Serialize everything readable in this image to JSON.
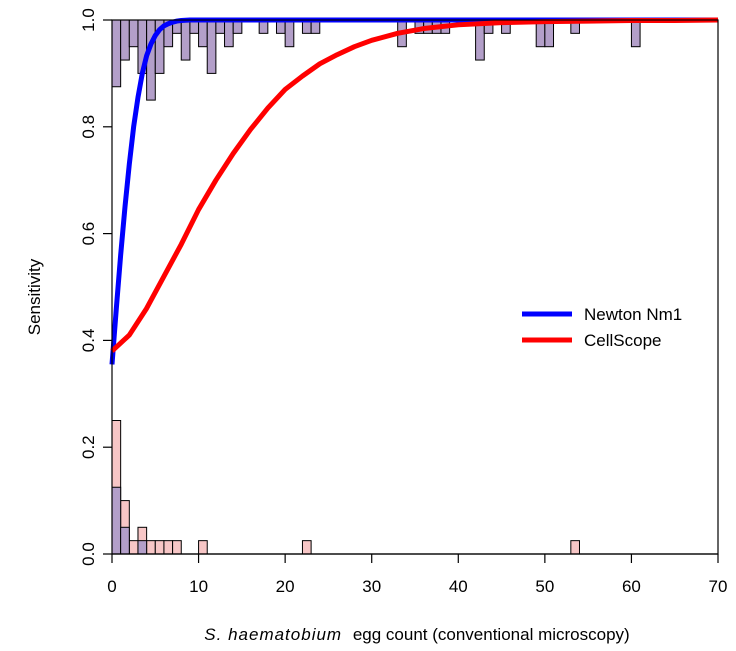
{
  "chart_data": {
    "type": "line",
    "xlabel_italic": "S. haematobium",
    "xlabel_rest": "egg count (conventional microscopy)",
    "ylabel": "Sensitivity",
    "xlim": [
      0,
      70
    ],
    "ylim": [
      0,
      1
    ],
    "x_ticks": [
      0,
      10,
      20,
      30,
      40,
      50,
      60,
      70
    ],
    "y_ticks": [
      0.0,
      0.2,
      0.4,
      0.6,
      0.8,
      1.0
    ],
    "x_tick_labels": [
      "0",
      "10",
      "20",
      "30",
      "40",
      "50",
      "60",
      "70"
    ],
    "y_tick_labels": [
      "0.0",
      "0.2",
      "0.4",
      "0.6",
      "0.8",
      "1.0"
    ],
    "grid": false,
    "legend_position": "right",
    "series": [
      {
        "name": "Newton Nm1",
        "color": "#0000ff",
        "x": [
          0,
          0.5,
          1,
          1.5,
          2,
          2.5,
          3,
          3.5,
          4,
          4.5,
          5,
          5.5,
          6,
          6.5,
          7,
          7.5,
          8,
          9,
          10,
          12,
          15,
          20,
          30,
          40,
          50,
          60,
          70
        ],
        "y": [
          0.355,
          0.46,
          0.56,
          0.65,
          0.73,
          0.8,
          0.855,
          0.9,
          0.933,
          0.955,
          0.971,
          0.982,
          0.989,
          0.993,
          0.996,
          0.998,
          0.999,
          1.0,
          1.0,
          1.0,
          1.0,
          1.0,
          1.0,
          1.0,
          1.0,
          1.0,
          1.0
        ]
      },
      {
        "name": "CellScope",
        "color": "#ff0000",
        "x": [
          0,
          2,
          4,
          6,
          8,
          10,
          12,
          14,
          16,
          18,
          20,
          22,
          24,
          26,
          28,
          30,
          33,
          36,
          40,
          45,
          50,
          55,
          60,
          65,
          70
        ],
        "y": [
          0.38,
          0.41,
          0.46,
          0.52,
          0.58,
          0.645,
          0.7,
          0.75,
          0.795,
          0.835,
          0.87,
          0.895,
          0.918,
          0.935,
          0.95,
          0.962,
          0.975,
          0.984,
          0.991,
          0.995,
          0.997,
          0.998,
          0.999,
          0.999,
          1.0
        ]
      }
    ],
    "histograms": {
      "bin_width": 1,
      "top_hanging_purple": [
        {
          "x": 0,
          "h": 0.125
        },
        {
          "x": 1,
          "h": 0.075
        },
        {
          "x": 2,
          "h": 0.05
        },
        {
          "x": 3,
          "h": 0.1
        },
        {
          "x": 4,
          "h": 0.15
        },
        {
          "x": 5,
          "h": 0.1
        },
        {
          "x": 6,
          "h": 0.05
        },
        {
          "x": 7,
          "h": 0.025
        },
        {
          "x": 8,
          "h": 0.075
        },
        {
          "x": 9,
          "h": 0.025
        },
        {
          "x": 10,
          "h": 0.05
        },
        {
          "x": 11,
          "h": 0.1
        },
        {
          "x": 12,
          "h": 0.025
        },
        {
          "x": 13,
          "h": 0.05
        },
        {
          "x": 14,
          "h": 0.025
        },
        {
          "x": 17,
          "h": 0.025
        },
        {
          "x": 19,
          "h": 0.025
        },
        {
          "x": 20,
          "h": 0.05
        },
        {
          "x": 22,
          "h": 0.025
        },
        {
          "x": 23,
          "h": 0.025
        },
        {
          "x": 33,
          "h": 0.05
        },
        {
          "x": 35,
          "h": 0.025
        },
        {
          "x": 36,
          "h": 0.025
        },
        {
          "x": 37,
          "h": 0.025
        },
        {
          "x": 38,
          "h": 0.025
        },
        {
          "x": 42,
          "h": 0.075
        },
        {
          "x": 43,
          "h": 0.025
        },
        {
          "x": 45,
          "h": 0.025
        },
        {
          "x": 49,
          "h": 0.05
        },
        {
          "x": 50,
          "h": 0.05
        },
        {
          "x": 53,
          "h": 0.025
        },
        {
          "x": 60,
          "h": 0.05
        }
      ],
      "top_hanging_blue": [
        {
          "x": 0,
          "h": 0.05
        },
        {
          "x": 1,
          "h": 0.05
        },
        {
          "x": 2,
          "h": 0.025
        },
        {
          "x": 4,
          "h": 0.05
        }
      ],
      "bottom_pink": [
        {
          "x": 0,
          "h": 0.25
        },
        {
          "x": 1,
          "h": 0.1
        },
        {
          "x": 2,
          "h": 0.025
        },
        {
          "x": 3,
          "h": 0.05
        },
        {
          "x": 4,
          "h": 0.025
        },
        {
          "x": 5,
          "h": 0.025
        },
        {
          "x": 6,
          "h": 0.025
        },
        {
          "x": 7,
          "h": 0.025
        },
        {
          "x": 10,
          "h": 0.025
        },
        {
          "x": 22,
          "h": 0.025
        },
        {
          "x": 53,
          "h": 0.025
        }
      ],
      "bottom_purple": [
        {
          "x": 0,
          "h": 0.125
        },
        {
          "x": 1,
          "h": 0.05
        },
        {
          "x": 3,
          "h": 0.025
        }
      ]
    },
    "colors": {
      "purple_fill": "#b39fc9",
      "blue_fill": "#c8c8f4",
      "pink_fill": "#f7c6c6",
      "bar_stroke": "#000000"
    }
  }
}
